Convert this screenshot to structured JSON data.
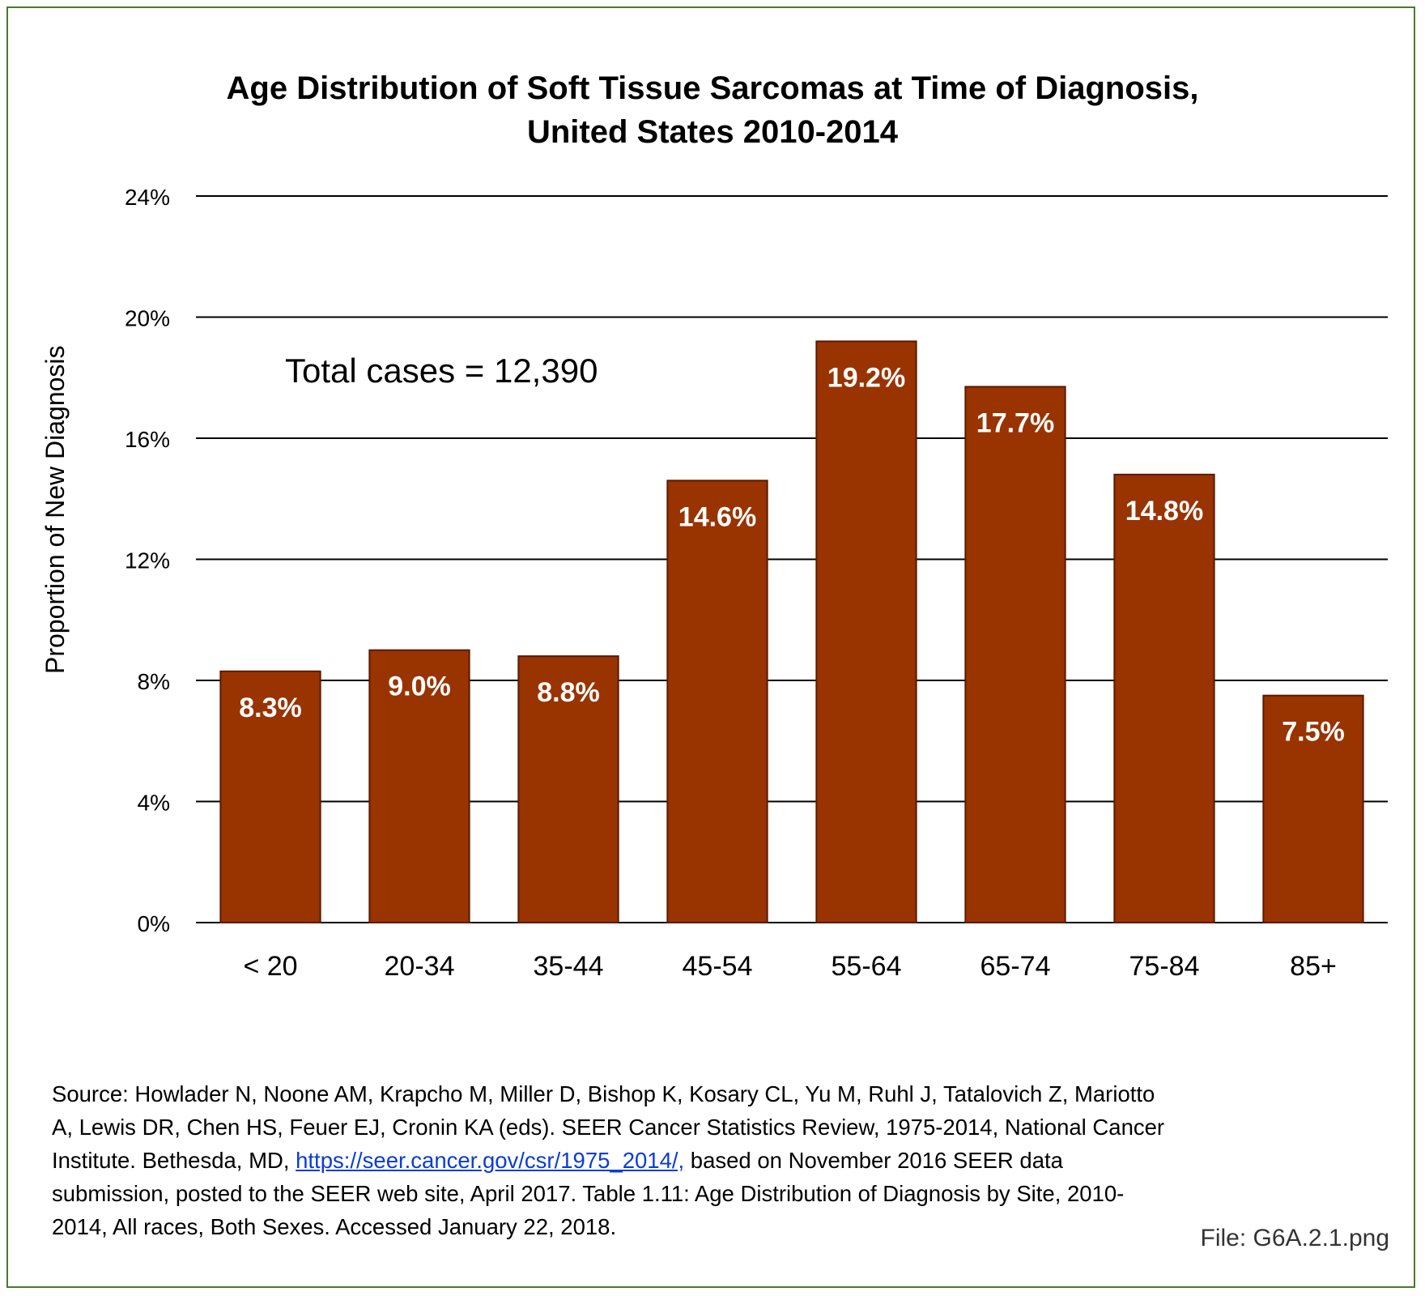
{
  "chart_data": {
    "type": "bar",
    "title_lines": [
      "Age Distribution of Soft Tissue Sarcomas at Time of Diagnosis,",
      "United States 2010-2014"
    ],
    "xlabel": "",
    "ylabel": "Proportion of New Diagnosis",
    "categories": [
      "< 20",
      "20-34",
      "35-44",
      "45-54",
      "55-64",
      "65-74",
      "75-84",
      "85+"
    ],
    "values": [
      8.3,
      9.0,
      8.8,
      14.6,
      19.2,
      17.7,
      14.8,
      7.5
    ],
    "data_labels": [
      "8.3%",
      "9.0%",
      "8.8%",
      "14.6%",
      "19.2%",
      "17.7%",
      "14.8%",
      "7.5%"
    ],
    "yticks": [
      0,
      4,
      8,
      12,
      16,
      20,
      24
    ],
    "ytick_labels": [
      "0%",
      "4%",
      "8%",
      "12%",
      "16%",
      "20%",
      "24%"
    ],
    "ylim": [
      0,
      24
    ],
    "grid": true,
    "legend": "none",
    "bar_color": "#993300",
    "bar_edge_color": "#5a1a00",
    "label_color": "#ffffff",
    "annotation": "Total cases = 12,390"
  },
  "source": {
    "prefix": "Source: Howlader N, Noone AM, Krapcho M, Miller D, Bishop K, Kosary CL, Yu M, Ruhl J, Tatalovich Z, Mariotto A, Lewis DR, Chen HS, Feuer EJ, Cronin KA (eds). SEER Cancer Statistics Review, 1975-2014, National Cancer Institute. Bethesda, MD, ",
    "link": "https://seer.cancer.gov/csr/1975_2014/,",
    "suffix": " based on November 2016 SEER data submission, posted to the SEER web site, April 2017. Table 1.11: Age Distribution of Diagnosis by Site, 2010-2014, All races, Both Sexes.  Accessed January 22, 2018."
  },
  "file_label": "File: G6A.2.1.png"
}
